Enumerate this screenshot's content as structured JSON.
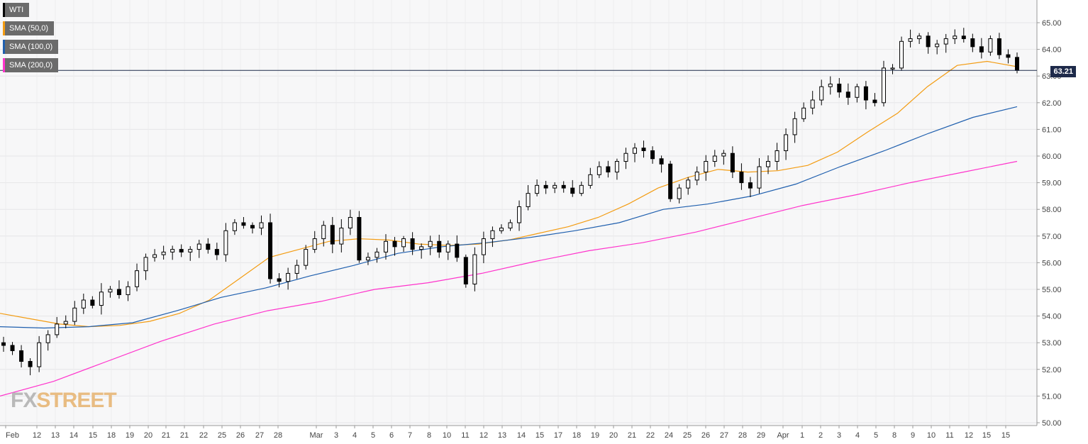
{
  "legend": [
    {
      "label": "WTI",
      "color": "#000000"
    },
    {
      "label": "SMA (50,0)",
      "color": "#f39c12"
    },
    {
      "label": "SMA (100,0)",
      "color": "#1f5fae"
    },
    {
      "label": "SMA (200,0)",
      "color": "#ff33cc"
    }
  ],
  "current_price_label": "63.21",
  "watermark": {
    "fx": "FX",
    "rest": "STREET"
  },
  "chart_data": {
    "type": "candlestick",
    "title": "",
    "ylim": [
      50.0,
      65.5
    ],
    "y_ticks": [
      "65.00",
      "64.00",
      "63.00",
      "62.00",
      "61.00",
      "60.00",
      "59.00",
      "58.00",
      "57.00",
      "56.00",
      "55.00",
      "54.00",
      "53.00",
      "52.00",
      "51.00",
      "50.00"
    ],
    "x_ticks": [
      "Feb",
      "12",
      "13",
      "14",
      "15",
      "18",
      "19",
      "20",
      "21",
      "21",
      "22",
      "25",
      "26",
      "27",
      "28",
      "Mar",
      "3",
      "4",
      "5",
      "6",
      "7",
      "8",
      "10",
      "11",
      "12",
      "13",
      "14",
      "15",
      "17",
      "18",
      "19",
      "20",
      "21",
      "22",
      "24",
      "25",
      "26",
      "27",
      "28",
      "29",
      "Apr",
      "1",
      "2",
      "3",
      "4",
      "5",
      "8",
      "9",
      "10",
      "11",
      "12",
      "15",
      "15"
    ],
    "current_price": 63.21,
    "grid": true,
    "series": [
      {
        "name": "WTI",
        "type": "candles",
        "close": [
          52.9,
          52.7,
          52.3,
          52.1,
          53.0,
          53.3,
          53.7,
          53.8,
          54.3,
          54.6,
          54.4,
          54.9,
          55.0,
          54.8,
          55.1,
          55.7,
          56.2,
          56.3,
          56.4,
          56.5,
          56.4,
          56.5,
          56.7,
          56.5,
          56.3,
          57.2,
          57.5,
          57.4,
          57.3,
          57.5,
          55.4,
          55.3,
          55.6,
          55.9,
          56.5,
          56.9,
          57.4,
          56.7,
          57.3,
          57.7,
          56.1,
          56.2,
          56.4,
          56.8,
          56.6,
          56.9,
          56.5,
          56.6,
          56.8,
          56.4,
          56.7,
          56.2,
          55.2,
          56.3,
          56.9,
          57.2,
          57.3,
          57.5,
          58.1,
          58.6,
          58.9,
          58.8,
          58.9,
          58.8,
          58.6,
          58.9,
          59.3,
          59.6,
          59.4,
          59.8,
          60.1,
          60.3,
          60.2,
          59.9,
          59.7,
          58.4,
          58.8,
          59.1,
          59.4,
          59.8,
          60.0,
          60.1,
          59.4,
          59.0,
          58.8,
          59.6,
          59.8,
          60.2,
          60.8,
          61.4,
          61.8,
          62.1,
          62.6,
          62.7,
          62.4,
          62.2,
          62.6,
          62.1,
          62.0,
          63.3,
          63.3,
          64.3,
          64.4,
          64.5,
          64.1,
          64.2,
          64.4,
          64.5,
          64.4,
          64.1,
          63.9,
          64.4,
          63.8,
          63.7,
          63.21
        ]
      },
      {
        "name": "SMA (50,0)",
        "values": [
          54.1,
          53.9,
          53.7,
          53.6,
          53.65,
          53.8,
          54.1,
          54.6,
          55.4,
          56.2,
          56.5,
          56.8,
          56.9,
          56.85,
          56.7,
          56.65,
          56.7,
          56.85,
          57.1,
          57.35,
          57.7,
          58.2,
          58.8,
          59.2,
          59.5,
          59.4,
          59.45,
          59.65,
          60.15,
          60.9,
          61.6,
          62.6,
          63.4,
          63.55,
          63.35
        ]
      },
      {
        "name": "SMA (100,0)",
        "values": [
          53.6,
          53.55,
          53.6,
          53.75,
          54.2,
          54.7,
          55.05,
          55.5,
          55.9,
          56.35,
          56.6,
          56.75,
          56.95,
          57.2,
          57.5,
          58.0,
          58.2,
          58.5,
          58.95,
          59.6,
          60.2,
          60.85,
          61.45,
          61.85
        ]
      },
      {
        "name": "SMA (200,0)",
        "values": [
          51.0,
          51.55,
          52.3,
          53.05,
          53.7,
          54.2,
          54.55,
          55.0,
          55.25,
          55.6,
          56.05,
          56.45,
          56.75,
          57.15,
          57.65,
          58.15,
          58.55,
          59.0,
          59.4,
          59.8
        ]
      }
    ]
  }
}
